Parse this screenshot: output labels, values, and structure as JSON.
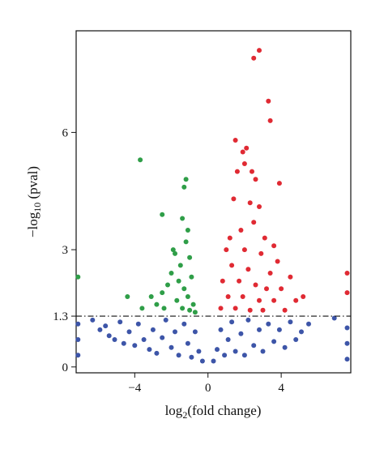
{
  "chart_data": {
    "type": "scatter",
    "title": "",
    "xlabel": "log2(fold change)",
    "xlabel_parts": {
      "base": "log",
      "sub": "2",
      "rest": "(fold change)"
    },
    "ylabel": "-log10 (pval)",
    "ylabel_parts": {
      "base": "−log",
      "sub": "10",
      "rest": " (pval)"
    },
    "xlim": [
      -7.2,
      7.8
    ],
    "ylim": [
      -0.15,
      8.6
    ],
    "x_ticks": [
      {
        "value": -4,
        "label": "−4"
      },
      {
        "value": 0,
        "label": "0"
      },
      {
        "value": 4,
        "label": "4"
      }
    ],
    "y_ticks": [
      {
        "value": 0,
        "label": "0"
      },
      {
        "value": 1.3,
        "label": "1.3"
      },
      {
        "value": 3,
        "label": "3"
      },
      {
        "value": 6,
        "label": "6"
      }
    ],
    "threshold": {
      "y": 1.3,
      "style": "dash-dot"
    },
    "grid": false,
    "legend": "none",
    "colors": {
      "not_significant": "#3d55a8",
      "down": "#2f9e48",
      "up": "#e02a33",
      "threshold_line": "#111111"
    },
    "series": [
      {
        "key": "not_significant",
        "points": [
          [
            -6.3,
            1.2
          ],
          [
            -5.9,
            0.95
          ],
          [
            -5.6,
            1.05
          ],
          [
            -5.4,
            0.8
          ],
          [
            -5.1,
            0.7
          ],
          [
            -4.8,
            1.15
          ],
          [
            -4.6,
            0.6
          ],
          [
            -4.3,
            0.9
          ],
          [
            -4.0,
            0.55
          ],
          [
            -3.8,
            1.1
          ],
          [
            -3.5,
            0.7
          ],
          [
            -3.2,
            0.45
          ],
          [
            -3.0,
            0.95
          ],
          [
            -2.8,
            0.35
          ],
          [
            -2.5,
            0.75
          ],
          [
            -2.3,
            1.2
          ],
          [
            -2.0,
            0.5
          ],
          [
            -1.8,
            0.9
          ],
          [
            -1.6,
            0.3
          ],
          [
            -1.3,
            1.1
          ],
          [
            -1.1,
            0.6
          ],
          [
            -0.9,
            0.25
          ],
          [
            -0.7,
            0.9
          ],
          [
            -0.5,
            0.4
          ],
          [
            -0.3,
            0.15
          ],
          [
            0.3,
            0.15
          ],
          [
            0.5,
            0.45
          ],
          [
            0.7,
            0.95
          ],
          [
            0.9,
            0.3
          ],
          [
            1.1,
            0.7
          ],
          [
            1.3,
            1.15
          ],
          [
            1.5,
            0.4
          ],
          [
            1.8,
            0.85
          ],
          [
            2.0,
            0.3
          ],
          [
            2.2,
            1.2
          ],
          [
            2.5,
            0.55
          ],
          [
            2.8,
            0.95
          ],
          [
            3.0,
            0.4
          ],
          [
            3.3,
            1.1
          ],
          [
            3.6,
            0.65
          ],
          [
            3.9,
            0.95
          ],
          [
            4.2,
            0.5
          ],
          [
            4.5,
            1.15
          ],
          [
            4.8,
            0.7
          ],
          [
            5.1,
            0.9
          ],
          [
            5.5,
            1.1
          ],
          [
            7.6,
            0.2
          ],
          [
            7.6,
            0.6
          ],
          [
            7.6,
            1.0
          ],
          [
            -7.1,
            0.3
          ],
          [
            -7.1,
            0.7
          ],
          [
            -7.1,
            1.1
          ],
          [
            6.9,
            1.25
          ]
        ]
      },
      {
        "key": "down",
        "points": [
          [
            -3.7,
            5.3
          ],
          [
            -2.5,
            3.9
          ],
          [
            -1.2,
            4.8
          ],
          [
            -1.3,
            4.6
          ],
          [
            -1.4,
            3.8
          ],
          [
            -1.1,
            3.5
          ],
          [
            -1.2,
            3.2
          ],
          [
            -1.0,
            2.8
          ],
          [
            -1.5,
            2.6
          ],
          [
            -1.8,
            2.9
          ],
          [
            -1.9,
            3.0
          ],
          [
            -2.0,
            2.4
          ],
          [
            -2.2,
            2.1
          ],
          [
            -2.5,
            1.9
          ],
          [
            -1.6,
            2.2
          ],
          [
            -1.3,
            2.0
          ],
          [
            -0.9,
            2.3
          ],
          [
            -1.1,
            1.8
          ],
          [
            -0.8,
            1.6
          ],
          [
            -1.4,
            1.5
          ],
          [
            -2.8,
            1.6
          ],
          [
            -3.1,
            1.8
          ],
          [
            -4.4,
            1.8
          ],
          [
            -3.6,
            1.5
          ],
          [
            -1.7,
            1.7
          ],
          [
            -2.4,
            1.5
          ],
          [
            -1.0,
            1.45
          ],
          [
            -0.7,
            1.4
          ],
          [
            -7.1,
            2.3
          ]
        ]
      },
      {
        "key": "up",
        "points": [
          [
            2.8,
            8.1
          ],
          [
            2.5,
            7.9
          ],
          [
            3.3,
            6.8
          ],
          [
            3.4,
            6.3
          ],
          [
            1.5,
            5.8
          ],
          [
            2.1,
            5.6
          ],
          [
            1.9,
            5.5
          ],
          [
            2.0,
            5.2
          ],
          [
            1.6,
            5.0
          ],
          [
            2.4,
            5.0
          ],
          [
            2.6,
            4.8
          ],
          [
            3.9,
            4.7
          ],
          [
            1.4,
            4.3
          ],
          [
            2.3,
            4.2
          ],
          [
            2.8,
            4.1
          ],
          [
            2.5,
            3.7
          ],
          [
            1.8,
            3.5
          ],
          [
            1.2,
            3.3
          ],
          [
            3.1,
            3.3
          ],
          [
            3.6,
            3.1
          ],
          [
            1.0,
            3.0
          ],
          [
            2.0,
            3.0
          ],
          [
            2.9,
            2.9
          ],
          [
            3.8,
            2.7
          ],
          [
            1.3,
            2.6
          ],
          [
            2.2,
            2.5
          ],
          [
            3.4,
            2.4
          ],
          [
            4.5,
            2.3
          ],
          [
            0.8,
            2.2
          ],
          [
            1.7,
            2.2
          ],
          [
            2.6,
            2.1
          ],
          [
            3.2,
            2.0
          ],
          [
            4.0,
            2.0
          ],
          [
            1.1,
            1.8
          ],
          [
            1.9,
            1.8
          ],
          [
            2.8,
            1.7
          ],
          [
            3.6,
            1.7
          ],
          [
            4.8,
            1.7
          ],
          [
            0.7,
            1.5
          ],
          [
            1.5,
            1.5
          ],
          [
            2.3,
            1.45
          ],
          [
            3.0,
            1.45
          ],
          [
            4.2,
            1.45
          ],
          [
            5.2,
            1.8
          ],
          [
            7.6,
            2.4
          ],
          [
            7.6,
            1.9
          ]
        ]
      }
    ]
  }
}
